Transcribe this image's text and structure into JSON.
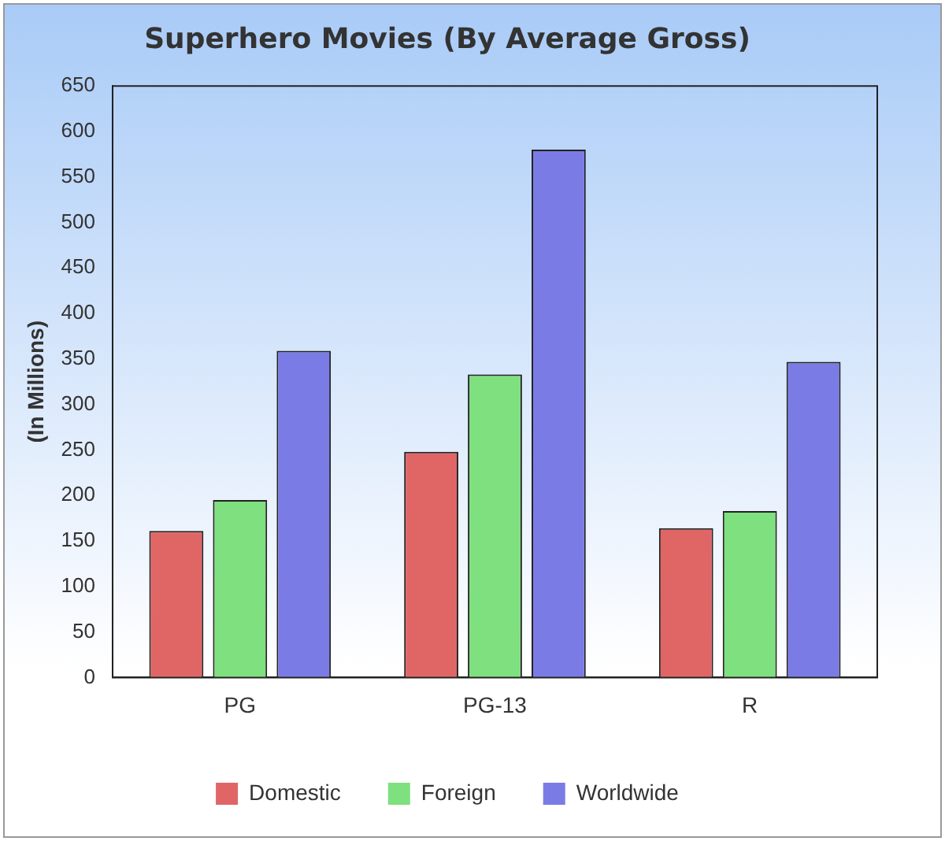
{
  "chart_data": {
    "type": "bar",
    "title": "Superhero Movies (By Average Gross)",
    "ylabel": "(In Millions)",
    "categories": [
      "PG",
      "PG-13",
      "R"
    ],
    "series": [
      {
        "name": "Domestic",
        "color": "#e06666",
        "values": [
          161,
          248,
          164
        ]
      },
      {
        "name": "Foreign",
        "color": "#7ee07e",
        "values": [
          195,
          333,
          183
        ]
      },
      {
        "name": "Worldwide",
        "color": "#7b7be6",
        "values": [
          359,
          580,
          347
        ]
      }
    ],
    "ylim": [
      0,
      650
    ],
    "yticks": [
      0,
      50,
      100,
      150,
      200,
      250,
      300,
      350,
      400,
      450,
      500,
      550,
      600,
      650
    ],
    "grid": false,
    "legend": "bottom"
  }
}
